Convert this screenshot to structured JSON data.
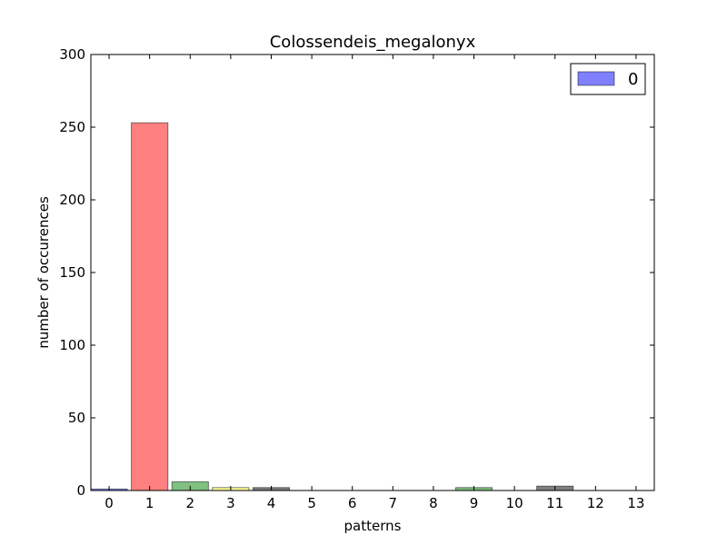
{
  "chart_data": {
    "type": "bar",
    "title": "Colossendeis_megalonyx",
    "xlabel": "patterns",
    "ylabel": "number of occurences",
    "categories": [
      "0",
      "1",
      "2",
      "3",
      "4",
      "5",
      "6",
      "7",
      "8",
      "9",
      "10",
      "11",
      "12",
      "13"
    ],
    "values": [
      1,
      253,
      6,
      2,
      2,
      0,
      0,
      0,
      0,
      2,
      0,
      3,
      0,
      0
    ],
    "bar_colors": [
      "#8080ff",
      "#ff8080",
      "#80c080",
      "#ffff99",
      "#808080",
      "#8080ff",
      "#ff8080",
      "#80c080",
      "#ffff99",
      "#80c080",
      "#ff8080",
      "#808080",
      "#8080ff",
      "#ff8080"
    ],
    "ylim": [
      0,
      300
    ],
    "yticks": [
      0,
      50,
      100,
      150,
      200,
      250,
      300
    ],
    "legend": {
      "label": "0",
      "color": "#8080ff",
      "position": "top-right"
    },
    "grid": false
  }
}
